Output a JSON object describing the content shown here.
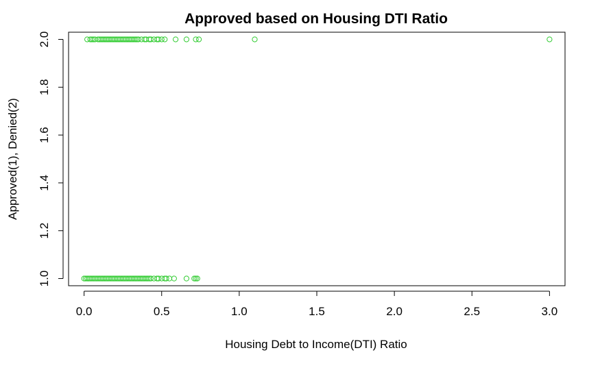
{
  "chart_data": {
    "type": "scatter",
    "title": "Approved based on Housing DTI Ratio",
    "xlabel": "Housing Debt to Income(DTI) Ratio",
    "ylabel": "Approved(1), Denied(2)",
    "xlim": [
      -0.1,
      3.1
    ],
    "ylim": [
      0.97,
      2.03
    ],
    "x_ticks": [
      "0.0",
      "0.5",
      "1.0",
      "1.5",
      "2.0",
      "2.5",
      "3.0"
    ],
    "y_ticks": [
      "1.0",
      "1.2",
      "1.4",
      "1.6",
      "1.8",
      "2.0"
    ],
    "x_tick_values": [
      0,
      0.5,
      1,
      1.5,
      2,
      2.5,
      3
    ],
    "y_tick_values": [
      1.0,
      1.2,
      1.4,
      1.6,
      1.8,
      2.0
    ],
    "grid": false,
    "marker": "open-circle",
    "point_color": "#33cc33",
    "series": [
      {
        "y_value": 1,
        "x": [
          0.0,
          0.01,
          0.02,
          0.03,
          0.04,
          0.05,
          0.06,
          0.07,
          0.08,
          0.09,
          0.1,
          0.11,
          0.12,
          0.13,
          0.14,
          0.15,
          0.16,
          0.17,
          0.18,
          0.19,
          0.2,
          0.21,
          0.22,
          0.23,
          0.24,
          0.25,
          0.26,
          0.27,
          0.28,
          0.29,
          0.3,
          0.31,
          0.32,
          0.33,
          0.34,
          0.35,
          0.36,
          0.37,
          0.38,
          0.39,
          0.4,
          0.41,
          0.42,
          0.43,
          0.45,
          0.47,
          0.48,
          0.5,
          0.52,
          0.53,
          0.55,
          0.58,
          0.66,
          0.71,
          0.72,
          0.73
        ]
      },
      {
        "y_value": 2,
        "x": [
          0.02,
          0.04,
          0.05,
          0.06,
          0.07,
          0.09,
          0.1,
          0.11,
          0.12,
          0.13,
          0.14,
          0.15,
          0.16,
          0.17,
          0.18,
          0.19,
          0.2,
          0.21,
          0.22,
          0.23,
          0.24,
          0.25,
          0.26,
          0.27,
          0.28,
          0.29,
          0.3,
          0.31,
          0.32,
          0.33,
          0.34,
          0.35,
          0.37,
          0.39,
          0.4,
          0.42,
          0.43,
          0.45,
          0.47,
          0.48,
          0.5,
          0.52,
          0.59,
          0.66,
          0.72,
          0.74,
          1.1,
          3.0
        ]
      }
    ]
  }
}
